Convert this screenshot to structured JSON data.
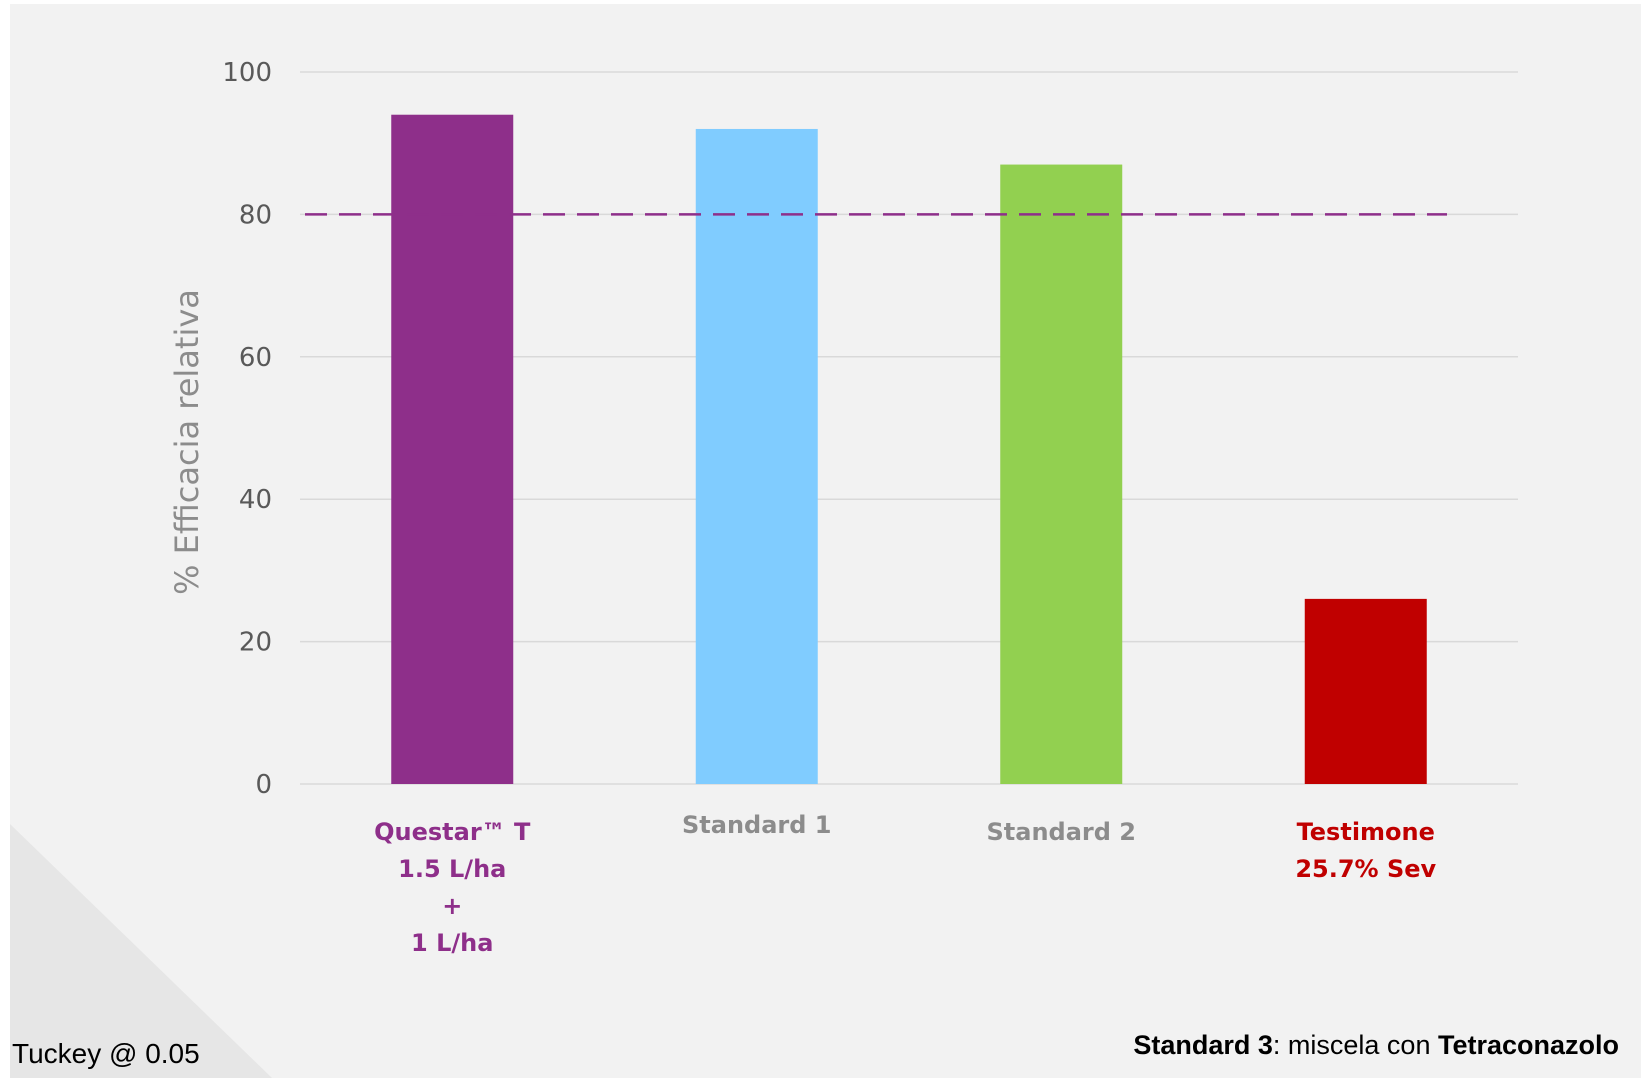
{
  "chart_data": {
    "type": "bar",
    "categories": [
      {
        "lines": [
          "Questar™ T",
          "1.5 L/ha",
          "+",
          "1 L/ha"
        ],
        "color": "#8e2f8a"
      },
      {
        "lines": [
          "Standard 1"
        ],
        "color": "#8c8c8c"
      },
      {
        "lines": [
          "Standard 2"
        ],
        "color": "#8c8c8c"
      },
      {
        "lines": [
          "Testimone",
          "25.7% Sev"
        ],
        "color": "#c00000"
      }
    ],
    "values": [
      94,
      92,
      87,
      26
    ],
    "bar_colors": [
      "#8e2f8a",
      "#80ccff",
      "#92d050",
      "#c00000"
    ],
    "ylabel": "% Efficacia relativa",
    "ylim": [
      0,
      100
    ],
    "yticks": [
      0,
      20,
      40,
      60,
      80,
      100
    ],
    "grid": true,
    "reference_line": {
      "value": 80,
      "style": "dashed",
      "color": "#8e2f8a"
    }
  },
  "footnotes": {
    "left": "Tuckey @ 0.05",
    "right_bold_1": "Standard 3",
    "right_text": ": miscela con ",
    "right_bold_2": "Tetraconazolo"
  }
}
